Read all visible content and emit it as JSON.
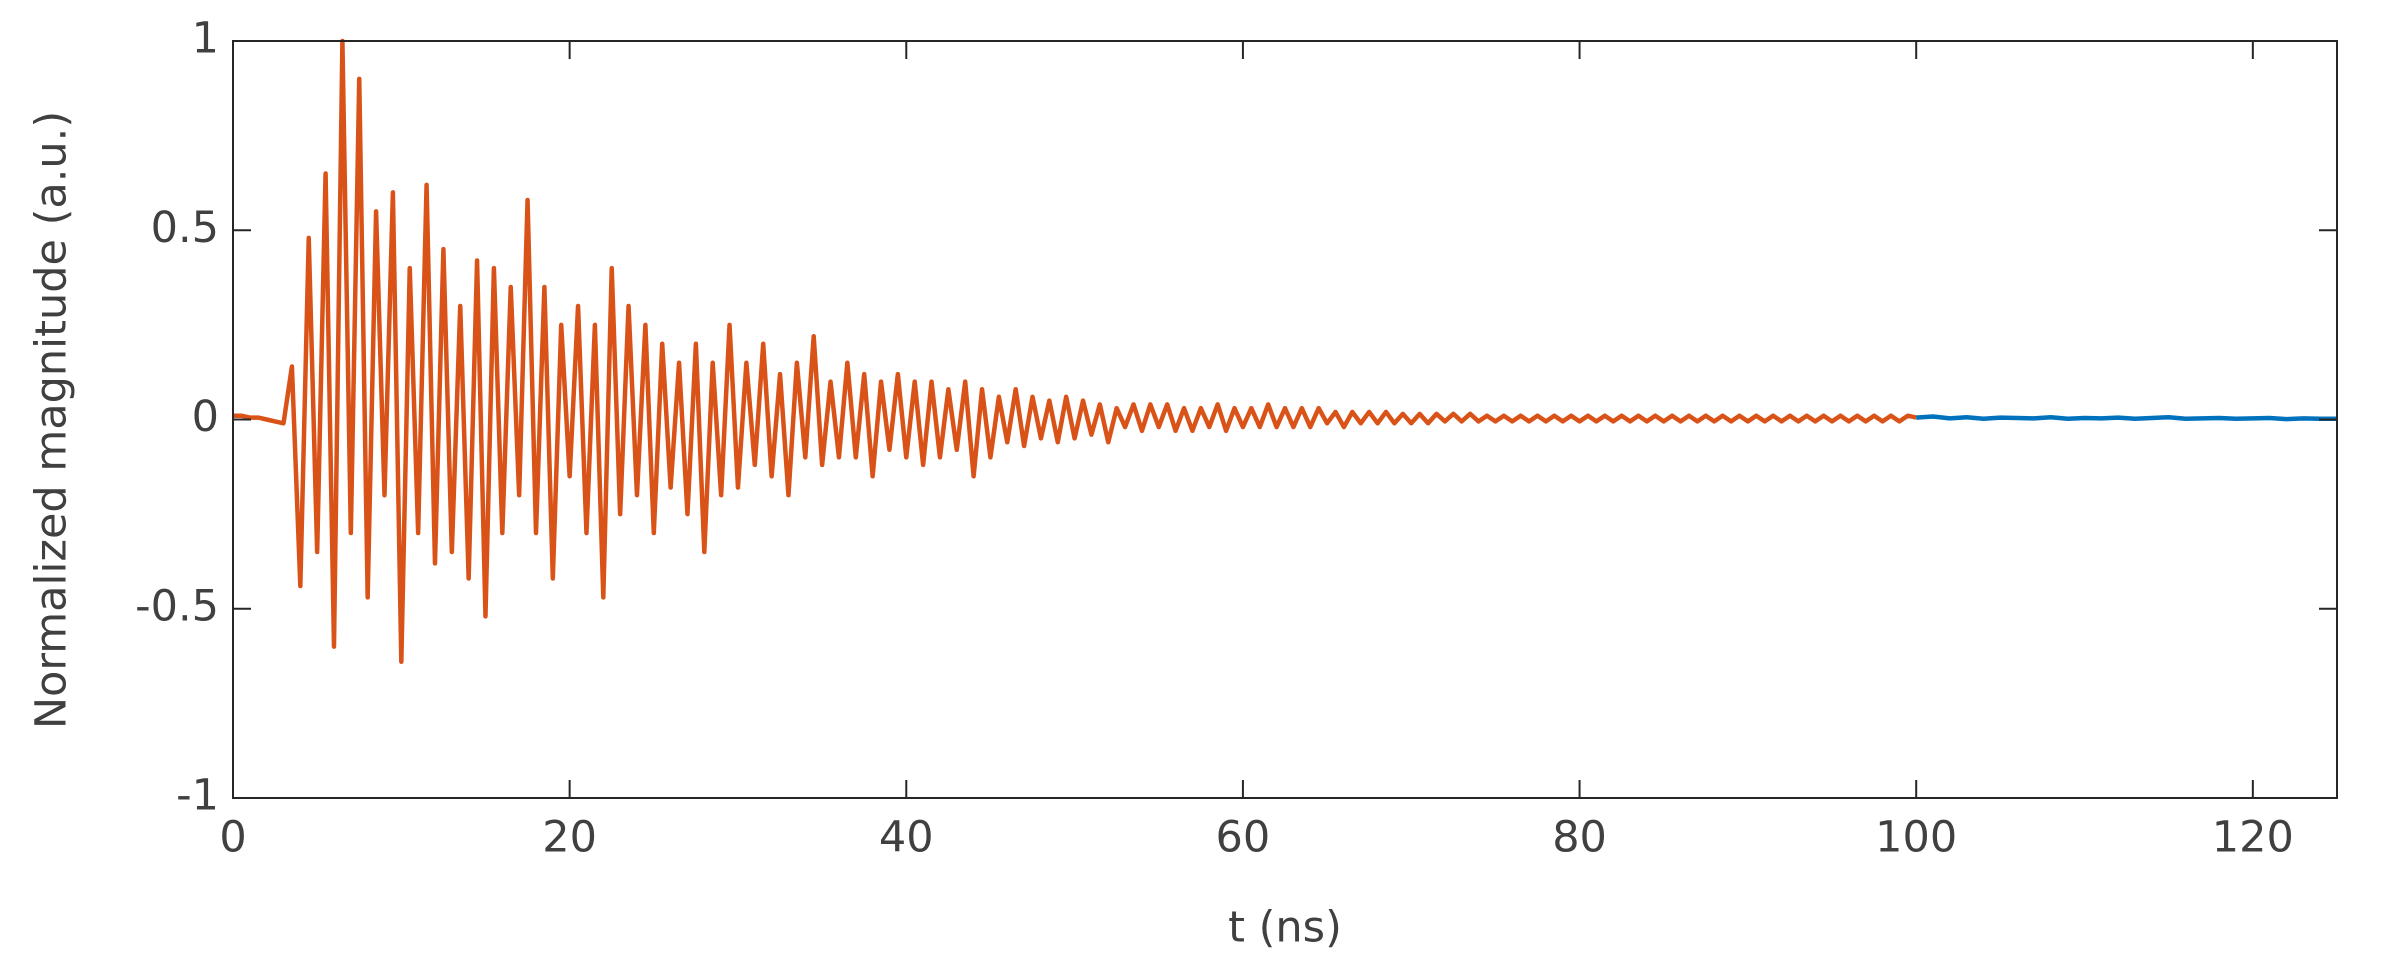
{
  "chart_data": {
    "type": "line",
    "xlabel": "t (ns)",
    "ylabel": "Normalized magnitude (a.u.)",
    "xlim": [
      0,
      125
    ],
    "xticks": [
      0,
      20,
      40,
      60,
      80,
      100,
      120
    ],
    "ylim": [
      -1,
      1
    ],
    "yticks": [
      -1,
      -0.5,
      0,
      0.5,
      1
    ],
    "box": true,
    "series": [
      {
        "color": "#d95319",
        "x": [
          0,
          0.5,
          1,
          1.5,
          2,
          2.5,
          3,
          3.5,
          4,
          4.5,
          5,
          5.5,
          6,
          6.5,
          7,
          7.5,
          8,
          8.5,
          9,
          9.5,
          10,
          10.5,
          11,
          11.5,
          12,
          12.5,
          13,
          13.5,
          14,
          14.5,
          15,
          15.5,
          16,
          16.5,
          17,
          17.5,
          18,
          18.5,
          19,
          19.5,
          20,
          20.5,
          21,
          21.5,
          22,
          22.5,
          23,
          23.5,
          24,
          24.5,
          25,
          25.5,
          26,
          26.5,
          27,
          27.5,
          28,
          28.5,
          29,
          29.5,
          30,
          30.5,
          31,
          31.5,
          32,
          32.5,
          33,
          33.5,
          34,
          34.5,
          35,
          35.5,
          36,
          36.5,
          37,
          37.5,
          38,
          38.5,
          39,
          39.5,
          40,
          40.5,
          41,
          41.5,
          42,
          42.5,
          43,
          43.5,
          44,
          44.5,
          45,
          45.5,
          46,
          46.5,
          47,
          47.5,
          48,
          48.5,
          49,
          49.5,
          50,
          50.5,
          51,
          51.5,
          52,
          52.5,
          53,
          53.5,
          54,
          54.5,
          55,
          55.5,
          56,
          56.5,
          57,
          57.5,
          58,
          58.5,
          59,
          59.5,
          60,
          60.5,
          61,
          61.5,
          62,
          62.5,
          63,
          63.5,
          64,
          64.5,
          65,
          65.5,
          66,
          66.5,
          67,
          67.5,
          68,
          68.5,
          69,
          69.5,
          70,
          70.5,
          71,
          71.5,
          72,
          72.5,
          73,
          73.5,
          74,
          74.5,
          75,
          75.5,
          76,
          76.5,
          77,
          77.5,
          78,
          78.5,
          79,
          79.5,
          80,
          80.5,
          81,
          81.5,
          82,
          82.5,
          83,
          83.5,
          84,
          84.5,
          85,
          85.5,
          86,
          86.5,
          87,
          87.5,
          88,
          88.5,
          89,
          89.5,
          90,
          90.5,
          91,
          91.5,
          92,
          92.5,
          93,
          93.5,
          94,
          94.5,
          95,
          95.5,
          96,
          96.5,
          97,
          97.5,
          98,
          98.5,
          99,
          99.5,
          100
        ],
        "values": [
          0.01,
          0.01,
          0.005,
          0.005,
          0,
          -0.005,
          -0.01,
          0.14,
          -0.44,
          0.48,
          -0.35,
          0.65,
          -0.6,
          1.0,
          -0.3,
          0.9,
          -0.47,
          0.55,
          -0.2,
          0.6,
          -0.64,
          0.4,
          -0.3,
          0.62,
          -0.38,
          0.45,
          -0.35,
          0.3,
          -0.42,
          0.42,
          -0.52,
          0.4,
          -0.3,
          0.35,
          -0.2,
          0.58,
          -0.3,
          0.35,
          -0.42,
          0.25,
          -0.15,
          0.3,
          -0.3,
          0.25,
          -0.47,
          0.4,
          -0.25,
          0.3,
          -0.2,
          0.25,
          -0.3,
          0.2,
          -0.18,
          0.15,
          -0.25,
          0.2,
          -0.35,
          0.15,
          -0.2,
          0.25,
          -0.18,
          0.15,
          -0.12,
          0.2,
          -0.15,
          0.12,
          -0.2,
          0.15,
          -0.1,
          0.22,
          -0.12,
          0.1,
          -0.1,
          0.15,
          -0.1,
          0.12,
          -0.15,
          0.1,
          -0.08,
          0.12,
          -0.1,
          0.1,
          -0.12,
          0.1,
          -0.1,
          0.08,
          -0.08,
          0.1,
          -0.15,
          0.08,
          -0.1,
          0.06,
          -0.06,
          0.08,
          -0.07,
          0.06,
          -0.05,
          0.05,
          -0.06,
          0.06,
          -0.05,
          0.05,
          -0.04,
          0.04,
          -0.06,
          0.03,
          -0.02,
          0.04,
          -0.03,
          0.04,
          -0.02,
          0.04,
          -0.03,
          0.03,
          -0.03,
          0.03,
          -0.02,
          0.04,
          -0.03,
          0.03,
          -0.02,
          0.03,
          -0.02,
          0.04,
          -0.02,
          0.03,
          -0.02,
          0.03,
          -0.02,
          0.03,
          -0.01,
          0.02,
          -0.02,
          0.02,
          -0.01,
          0.02,
          -0.01,
          0.02,
          -0.01,
          0.015,
          -0.01,
          0.015,
          -0.01,
          0.015,
          -0.005,
          0.015,
          -0.005,
          0.015,
          -0.005,
          0.01,
          -0.005,
          0.01,
          -0.005,
          0.01,
          -0.005,
          0.01,
          -0.005,
          0.01,
          -0.005,
          0.01,
          -0.005,
          0.01,
          -0.005,
          0.01,
          -0.005,
          0.01,
          -0.005,
          0.01,
          -0.005,
          0.01,
          -0.005,
          0.01,
          -0.005,
          0.01,
          -0.005,
          0.01,
          -0.005,
          0.01,
          -0.005,
          0.01,
          -0.005,
          0.01,
          -0.005,
          0.01,
          -0.005,
          0.01,
          -0.005,
          0.01,
          -0.005,
          0.01,
          -0.005,
          0.01,
          -0.005,
          0.01,
          -0.005,
          0.01,
          -0.005,
          0.01,
          -0.005,
          0.01,
          0.005
        ]
      },
      {
        "color": "#0072bd",
        "x": [
          100,
          101,
          102,
          103,
          104,
          105,
          106,
          107,
          108,
          109,
          110,
          111,
          112,
          113,
          114,
          115,
          116,
          117,
          118,
          119,
          120,
          121,
          122,
          123,
          124,
          125
        ],
        "values": [
          0.005,
          0.008,
          0.003,
          0.006,
          0.002,
          0.005,
          0.004,
          0.003,
          0.006,
          0.002,
          0.004,
          0.003,
          0.005,
          0.002,
          0.004,
          0.006,
          0.002,
          0.003,
          0.004,
          0.002,
          0.003,
          0.004,
          0.001,
          0.003,
          0.002,
          0.002
        ]
      }
    ]
  }
}
